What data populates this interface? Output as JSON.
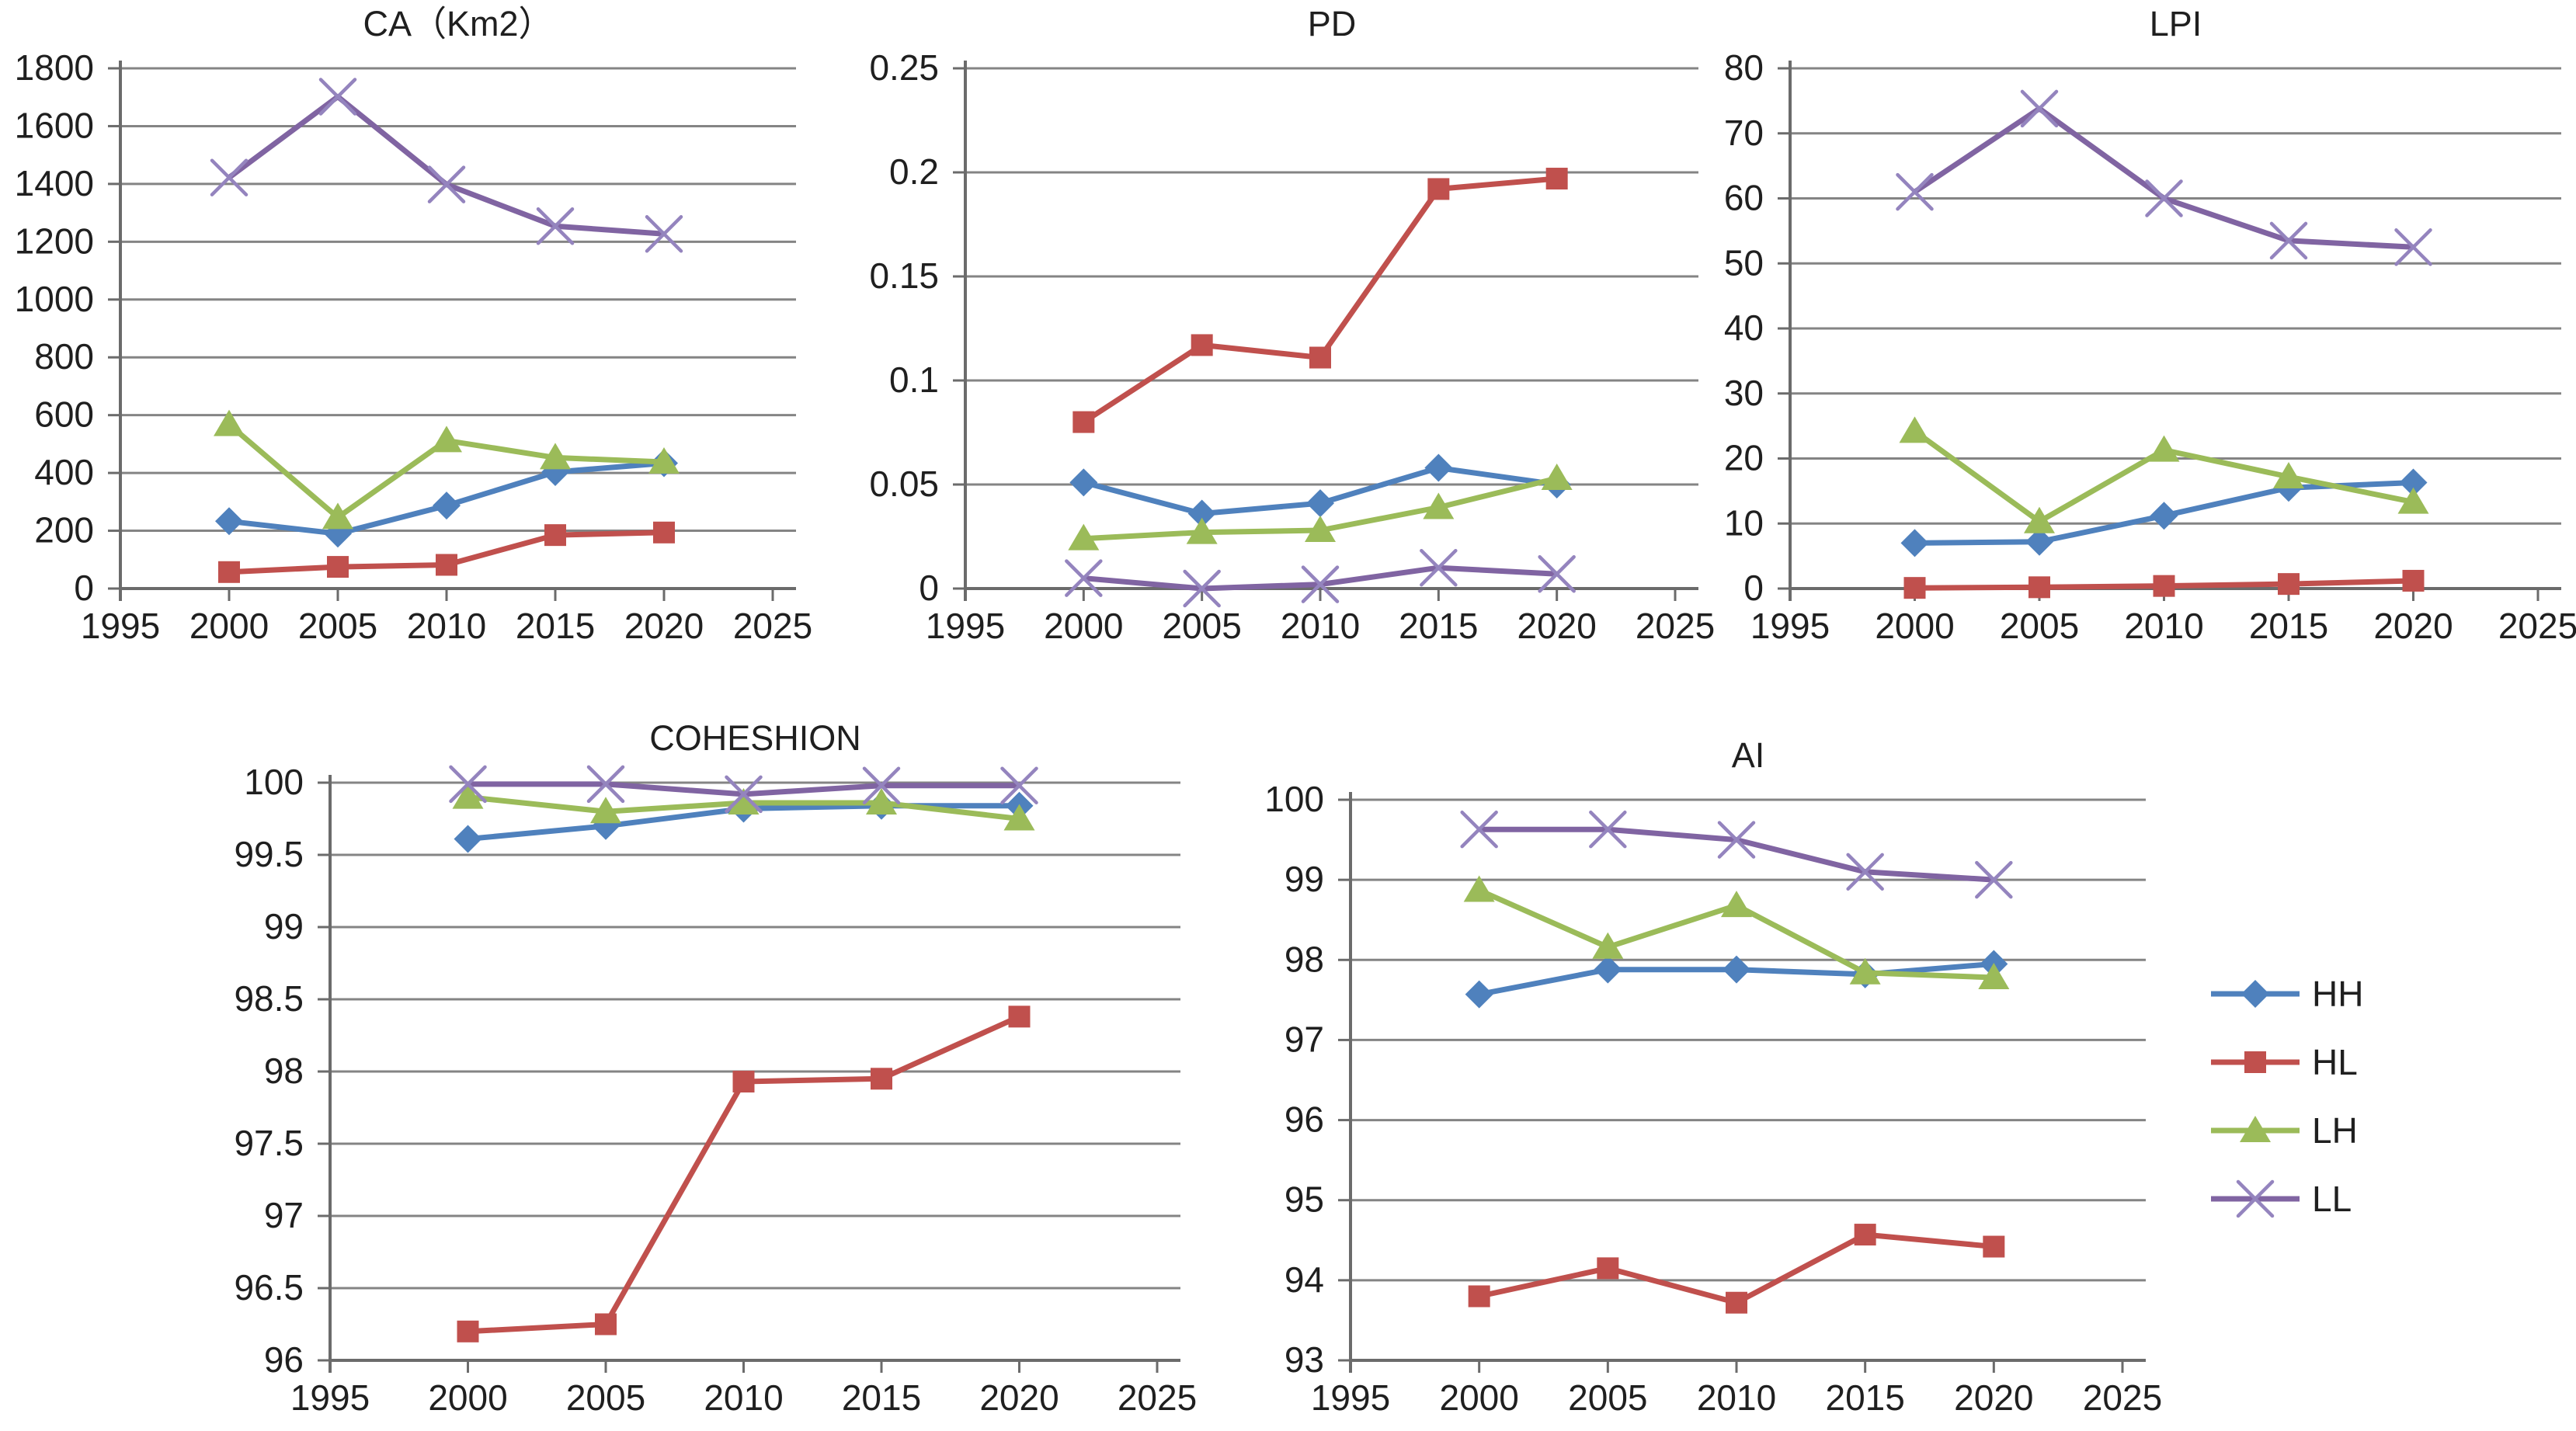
{
  "figure": {
    "background": "#ffffff",
    "description": "Five line charts of landscape metrics (CA, PD, LPI, COHESHION, AI) for classes HH, HL, LH, LL from 2000 to 2020",
    "legend_position": "middle-right"
  },
  "style": {
    "grid_color": "#848484",
    "axis_color": "#6b6b6b",
    "text_color": "#1f1f1f",
    "accent_blue": "#4F81BD",
    "accent_red": "#C0504D",
    "accent_green": "#9BBB59",
    "accent_purple": "#8064A2"
  },
  "legend": {
    "items": [
      {
        "label": "HH",
        "color": "#4F81BD",
        "marker_shape": "diamond"
      },
      {
        "label": "HL",
        "color": "#C0504D",
        "marker_shape": "square"
      },
      {
        "label": "LH",
        "color": "#9BBB59",
        "marker_shape": "triangle"
      },
      {
        "label": "LL",
        "color": "#8064A2",
        "marker_shape": "x",
        "marker_color": "#9484BE"
      }
    ]
  },
  "chart_data": [
    {
      "type": "line",
      "title": "CA（Km2）",
      "xlabel": "",
      "ylabel": "",
      "grid": "horizontal",
      "xlim": [
        1995,
        2025
      ],
      "ylim": [
        0,
        1800
      ],
      "x": [
        2000,
        2005,
        2010,
        2015,
        2020
      ],
      "xticks": [
        1995,
        2000,
        2005,
        2010,
        2015,
        2020,
        2025
      ],
      "xtick_labels": [
        "1995",
        "2000",
        "2005",
        "2010",
        "2015",
        "2020",
        "2025"
      ],
      "yticks": [
        0,
        200,
        400,
        600,
        800,
        1000,
        1200,
        1400,
        1600,
        1800
      ],
      "ytick_labels": [
        "0",
        "200",
        "400",
        "600",
        "800",
        "1000",
        "1200",
        "1400",
        "1600",
        "1800"
      ],
      "series": [
        {
          "name": "HH",
          "color": "#4F81BD",
          "marker": "diamond",
          "values": [
            233,
            190,
            287,
            403,
            434
          ]
        },
        {
          "name": "HL",
          "color": "#C0504D",
          "marker": "square",
          "values": [
            57,
            75,
            82,
            185,
            194
          ]
        },
        {
          "name": "LH",
          "color": "#9BBB59",
          "marker": "triangle",
          "values": [
            568,
            246,
            512,
            453,
            438
          ]
        },
        {
          "name": "LL",
          "color": "#8064A2",
          "marker": "x",
          "marker_color": "#9484BE",
          "values": [
            1422,
            1702,
            1398,
            1254,
            1227
          ]
        }
      ]
    },
    {
      "type": "line",
      "title": "PD",
      "xlabel": "",
      "ylabel": "",
      "grid": "horizontal",
      "xlim": [
        1995,
        2025
      ],
      "ylim": [
        0,
        0.25
      ],
      "x": [
        2000,
        2005,
        2010,
        2015,
        2020
      ],
      "xticks": [
        1995,
        2000,
        2005,
        2010,
        2015,
        2020,
        2025
      ],
      "xtick_labels": [
        "1995",
        "2000",
        "2005",
        "2010",
        "2015",
        "2020",
        "2025"
      ],
      "yticks": [
        0,
        0.05,
        0.1,
        0.15,
        0.2,
        0.25
      ],
      "ytick_labels": [
        "0",
        "0.05",
        "0.1",
        "0.15",
        "0.2",
        "0.25"
      ],
      "series": [
        {
          "name": "HH",
          "color": "#4F81BD",
          "marker": "diamond",
          "values": [
            0.051,
            0.036,
            0.041,
            0.058,
            0.05
          ]
        },
        {
          "name": "HL",
          "color": "#C0504D",
          "marker": "square",
          "values": [
            0.08,
            0.117,
            0.111,
            0.192,
            0.197
          ]
        },
        {
          "name": "LH",
          "color": "#9BBB59",
          "marker": "triangle",
          "values": [
            0.024,
            0.027,
            0.028,
            0.039,
            0.053
          ]
        },
        {
          "name": "LL",
          "color": "#8064A2",
          "marker": "x",
          "marker_color": "#9484BE",
          "values": [
            0.005,
            0.0,
            0.002,
            0.01,
            0.007
          ]
        }
      ]
    },
    {
      "type": "line",
      "title": "LPI",
      "xlabel": "",
      "ylabel": "",
      "grid": "horizontal",
      "xlim": [
        1995,
        2025
      ],
      "ylim": [
        0,
        80
      ],
      "x": [
        2000,
        2005,
        2010,
        2015,
        2020
      ],
      "xticks": [
        1995,
        2000,
        2005,
        2010,
        2015,
        2020,
        2025
      ],
      "xtick_labels": [
        "1995",
        "2000",
        "2005",
        "2010",
        "2015",
        "2020",
        "2025"
      ],
      "yticks": [
        0,
        10,
        20,
        30,
        40,
        50,
        60,
        70,
        80
      ],
      "ytick_labels": [
        "0",
        "10",
        "20",
        "30",
        "40",
        "50",
        "60",
        "70",
        "80"
      ],
      "series": [
        {
          "name": "HH",
          "color": "#4F81BD",
          "marker": "diamond",
          "values": [
            7.0,
            7.2,
            11.2,
            15.5,
            16.3
          ]
        },
        {
          "name": "HL",
          "color": "#C0504D",
          "marker": "square",
          "values": [
            0.1,
            0.2,
            0.4,
            0.7,
            1.2
          ]
        },
        {
          "name": "LH",
          "color": "#9BBB59",
          "marker": "triangle",
          "values": [
            24.2,
            10.3,
            21.3,
            17.2,
            13.3
          ]
        },
        {
          "name": "LL",
          "color": "#8064A2",
          "marker": "x",
          "marker_color": "#9484BE",
          "values": [
            61.0,
            73.8,
            60.0,
            53.5,
            52.5
          ]
        }
      ]
    },
    {
      "type": "line",
      "title": "COHESHION",
      "xlabel": "",
      "ylabel": "",
      "grid": "horizontal",
      "xlim": [
        1995,
        2025
      ],
      "ylim": [
        96,
        100
      ],
      "x": [
        2000,
        2005,
        2010,
        2015,
        2020
      ],
      "xticks": [
        1995,
        2000,
        2005,
        2010,
        2015,
        2020,
        2025
      ],
      "xtick_labels": [
        "1995",
        "2000",
        "2005",
        "2010",
        "2015",
        "2020",
        "2025"
      ],
      "yticks": [
        96,
        96.5,
        97,
        97.5,
        98,
        98.5,
        99,
        99.5,
        100
      ],
      "ytick_labels": [
        "96",
        "96.5",
        "97",
        "97.5",
        "98",
        "98.5",
        "99",
        "99.5",
        "100"
      ],
      "series": [
        {
          "name": "HH",
          "color": "#4F81BD",
          "marker": "diamond",
          "values": [
            99.61,
            99.7,
            99.82,
            99.84,
            99.84
          ]
        },
        {
          "name": "HL",
          "color": "#C0504D",
          "marker": "square",
          "values": [
            96.2,
            96.25,
            97.93,
            97.95,
            98.38
          ]
        },
        {
          "name": "LH",
          "color": "#9BBB59",
          "marker": "triangle",
          "values": [
            99.9,
            99.8,
            99.86,
            99.86,
            99.75
          ]
        },
        {
          "name": "LL",
          "color": "#8064A2",
          "marker": "x",
          "marker_color": "#9484BE",
          "values": [
            99.99,
            99.99,
            99.92,
            99.98,
            99.98
          ]
        }
      ]
    },
    {
      "type": "line",
      "title": "AI",
      "xlabel": "",
      "ylabel": "",
      "grid": "horizontal",
      "xlim": [
        1995,
        2025
      ],
      "ylim": [
        93,
        100
      ],
      "x": [
        2000,
        2005,
        2010,
        2015,
        2020
      ],
      "xticks": [
        1995,
        2000,
        2005,
        2010,
        2015,
        2020,
        2025
      ],
      "xtick_labels": [
        "1995",
        "2000",
        "2005",
        "2010",
        "2015",
        "2020",
        "2025"
      ],
      "yticks": [
        93,
        94,
        95,
        96,
        97,
        98,
        99,
        100
      ],
      "ytick_labels": [
        "93",
        "94",
        "95",
        "96",
        "97",
        "98",
        "99",
        "100"
      ],
      "series": [
        {
          "name": "HH",
          "color": "#4F81BD",
          "marker": "diamond",
          "values": [
            97.57,
            97.88,
            97.88,
            97.82,
            97.95
          ]
        },
        {
          "name": "HL",
          "color": "#C0504D",
          "marker": "square",
          "values": [
            93.8,
            94.15,
            93.72,
            94.57,
            94.42
          ]
        },
        {
          "name": "LH",
          "color": "#9BBB59",
          "marker": "triangle",
          "values": [
            98.87,
            98.16,
            98.68,
            97.84,
            97.78
          ]
        },
        {
          "name": "LL",
          "color": "#8064A2",
          "marker": "x",
          "marker_color": "#9484BE",
          "values": [
            99.63,
            99.63,
            99.5,
            99.1,
            99.0
          ]
        }
      ]
    }
  ]
}
